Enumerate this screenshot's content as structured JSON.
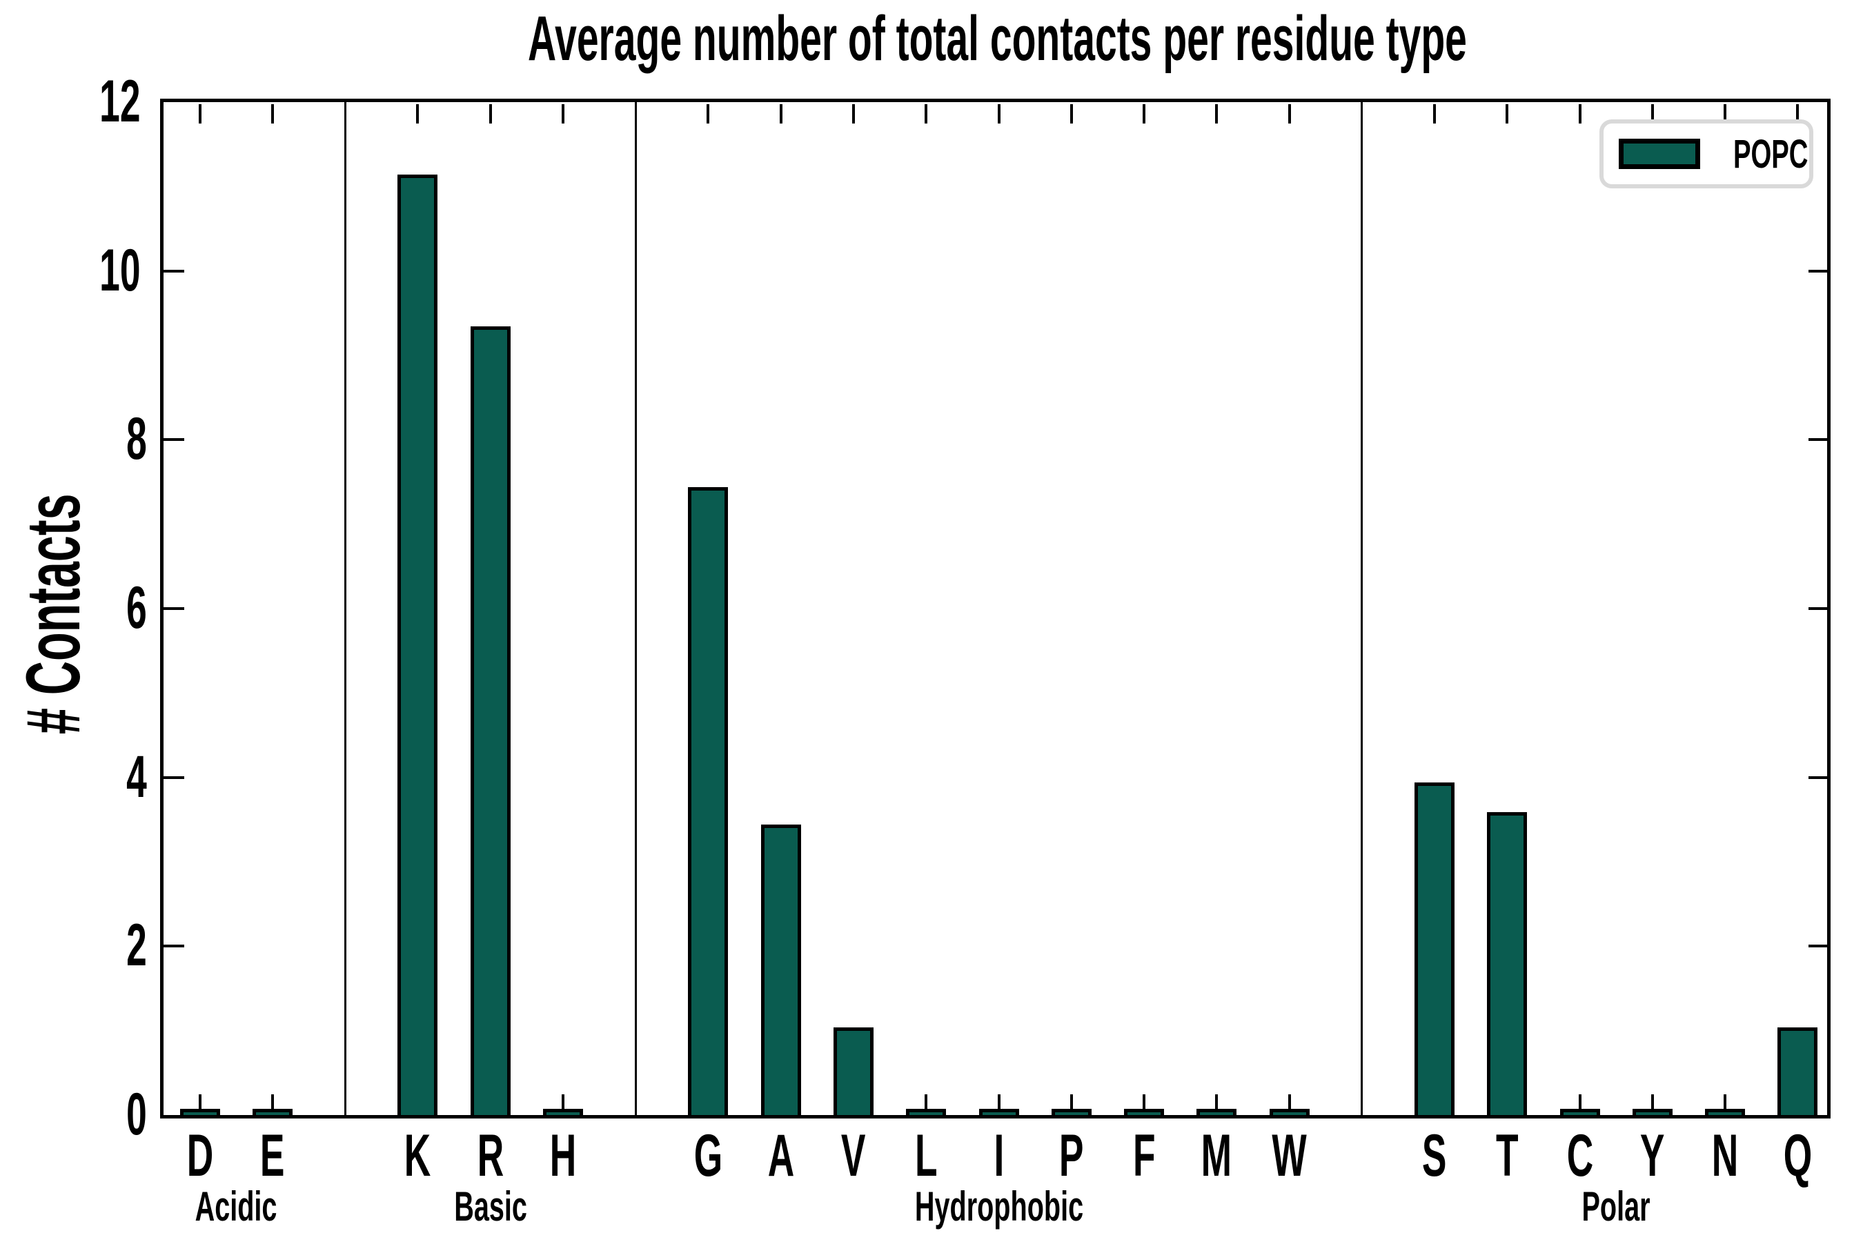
{
  "title": "Average number of total contacts per residue type",
  "legend": {
    "label": "POPC"
  },
  "colors": {
    "bar_fill": "#0a5c50",
    "bar_edge": "#000000",
    "legend_border": "#d9d9d9",
    "axis": "#000000",
    "background": "#ffffff"
  },
  "chart_data": {
    "type": "bar",
    "title": "Average number of total contacts per residue type",
    "xlabel": "",
    "ylabel": "# Contacts",
    "ylim": [
      0,
      12
    ],
    "yticks": [
      0,
      2,
      4,
      6,
      8,
      10,
      12
    ],
    "grid": false,
    "legend_entries": [
      "POPC"
    ],
    "legend_position": "upper right",
    "series_name": "POPC",
    "groups": [
      {
        "label": "Acidic",
        "categories": [
          "D",
          "E"
        ],
        "values": [
          0.03,
          0.03
        ]
      },
      {
        "label": "Basic",
        "categories": [
          "K",
          "R",
          "H"
        ],
        "values": [
          11.1,
          9.3,
          0.03
        ]
      },
      {
        "label": "Hydrophobic",
        "categories": [
          "G",
          "A",
          "V",
          "L",
          "I",
          "P",
          "F",
          "M",
          "W"
        ],
        "values": [
          7.4,
          3.4,
          1.0,
          0.03,
          0.03,
          0.03,
          0.03,
          0.03,
          0.03
        ]
      },
      {
        "label": "Polar",
        "categories": [
          "S",
          "T",
          "C",
          "Y",
          "N",
          "Q"
        ],
        "values": [
          3.9,
          3.55,
          0.03,
          0.03,
          0.03,
          1.0
        ]
      }
    ]
  }
}
